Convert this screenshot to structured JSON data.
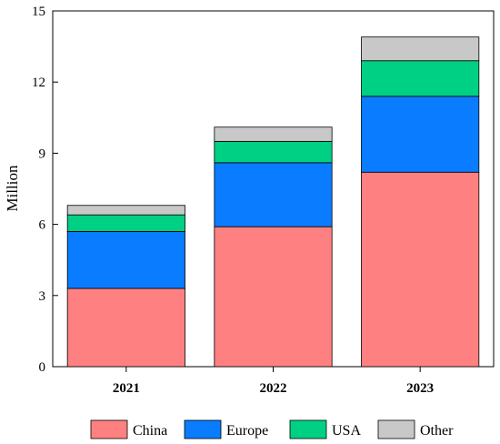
{
  "chart_data": {
    "type": "bar",
    "stacked": true,
    "categories": [
      "2021",
      "2022",
      "2023"
    ],
    "series": [
      {
        "name": "China",
        "color": "#ff8080",
        "values": [
          3.3,
          5.9,
          8.2
        ]
      },
      {
        "name": "Europe",
        "color": "#0a7cff",
        "values": [
          2.4,
          2.7,
          3.2
        ]
      },
      {
        "name": "USA",
        "color": "#00d084",
        "values": [
          0.7,
          0.9,
          1.5
        ]
      },
      {
        "name": "Other",
        "color": "#c8c8c8",
        "values": [
          0.4,
          0.6,
          1.0
        ]
      }
    ],
    "ylabel": "Million",
    "xlabel": "",
    "ylim": [
      0,
      15
    ],
    "yticks": [
      "0",
      "3",
      "6",
      "9",
      "12",
      "15"
    ],
    "legend_position": "bottom",
    "grid": false
  }
}
